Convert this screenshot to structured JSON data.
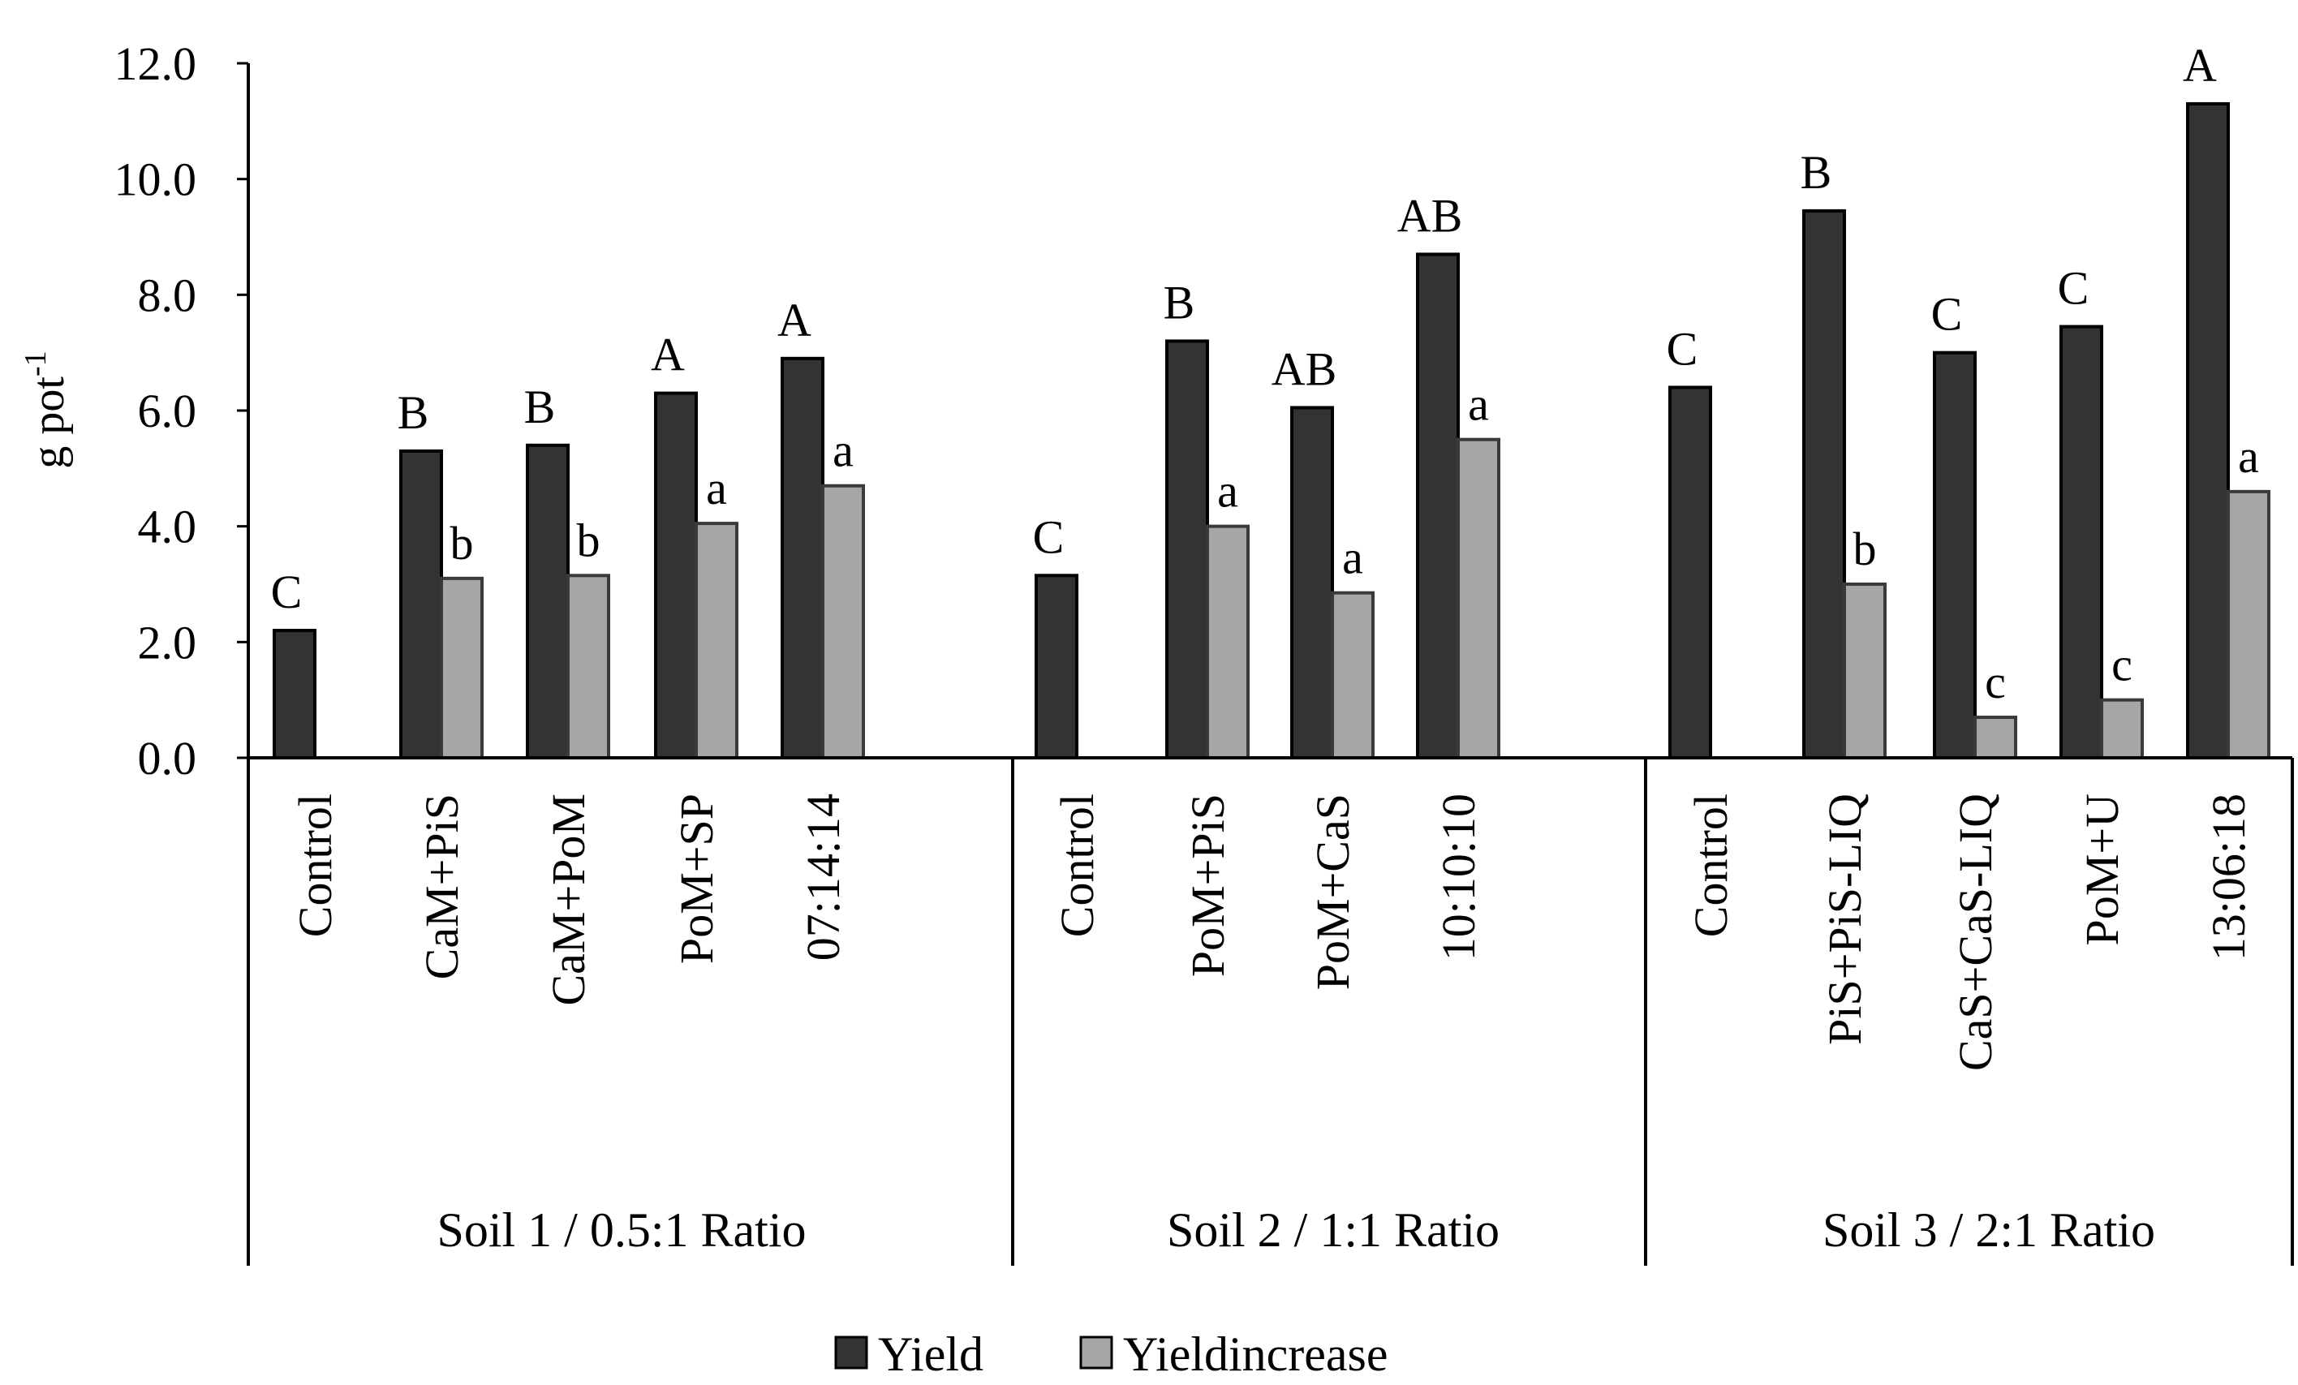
{
  "chart_data": {
    "type": "bar",
    "ylabel": "g pot",
    "ylabel_superscript": "-1",
    "ylim": [
      0,
      12
    ],
    "yticks": [
      "0.0",
      "2.0",
      "4.0",
      "6.0",
      "8.0",
      "10.0",
      "12.0"
    ],
    "series": [
      {
        "name": "Yield",
        "color": "#333333"
      },
      {
        "name": "Yieldincrease",
        "color": "#a6a6a6"
      }
    ],
    "groups": [
      {
        "label": "Soil 1 / 0.5:1 Ratio",
        "categories": [
          {
            "label": "Control",
            "yield": 2.2,
            "yield_letter": "C",
            "increase": null,
            "increase_letter": null
          },
          {
            "label": "CaM+PiS",
            "yield": 5.3,
            "yield_letter": "B",
            "increase": 3.1,
            "increase_letter": "b"
          },
          {
            "label": "CaM+PoM",
            "yield": 5.4,
            "yield_letter": "B",
            "increase": 3.15,
            "increase_letter": "b"
          },
          {
            "label": "PoM+SP",
            "yield": 6.3,
            "yield_letter": "A",
            "increase": 4.05,
            "increase_letter": "a"
          },
          {
            "label": "07:14:14",
            "yield": 6.9,
            "yield_letter": "A",
            "increase": 4.7,
            "increase_letter": "a"
          }
        ]
      },
      {
        "label": "Soil 2 / 1:1 Ratio",
        "categories": [
          {
            "label": "Control",
            "yield": 3.15,
            "yield_letter": "C",
            "increase": null,
            "increase_letter": null
          },
          {
            "label": "PoM+PiS",
            "yield": 7.2,
            "yield_letter": "B",
            "increase": 4.0,
            "increase_letter": "a"
          },
          {
            "label": "PoM+CaS",
            "yield": 6.05,
            "yield_letter": "AB",
            "increase": 2.85,
            "increase_letter": "a"
          },
          {
            "label": "10:10:10",
            "yield": 8.7,
            "yield_letter": "AB",
            "increase": 5.5,
            "increase_letter": "a"
          }
        ]
      },
      {
        "label": "Soil 3 / 2:1 Ratio",
        "categories": [
          {
            "label": "Control",
            "yield": 6.4,
            "yield_letter": "C",
            "increase": null,
            "increase_letter": null
          },
          {
            "label": "PiS+PiS-LIQ",
            "yield": 9.45,
            "yield_letter": "B",
            "increase": 3.0,
            "increase_letter": "b"
          },
          {
            "label": "CaS+CaS-LIQ",
            "yield": 7.0,
            "yield_letter": "C",
            "increase": 0.7,
            "increase_letter": "c"
          },
          {
            "label": "PoM+U",
            "yield": 7.45,
            "yield_letter": "C",
            "increase": 1.0,
            "increase_letter": "c"
          },
          {
            "label": "13:06:18",
            "yield": 11.3,
            "yield_letter": "A",
            "increase": 4.6,
            "increase_letter": "a"
          }
        ]
      }
    ],
    "legend": {
      "position": "bottom",
      "items": [
        "Yield",
        "Yieldincrease"
      ]
    }
  }
}
